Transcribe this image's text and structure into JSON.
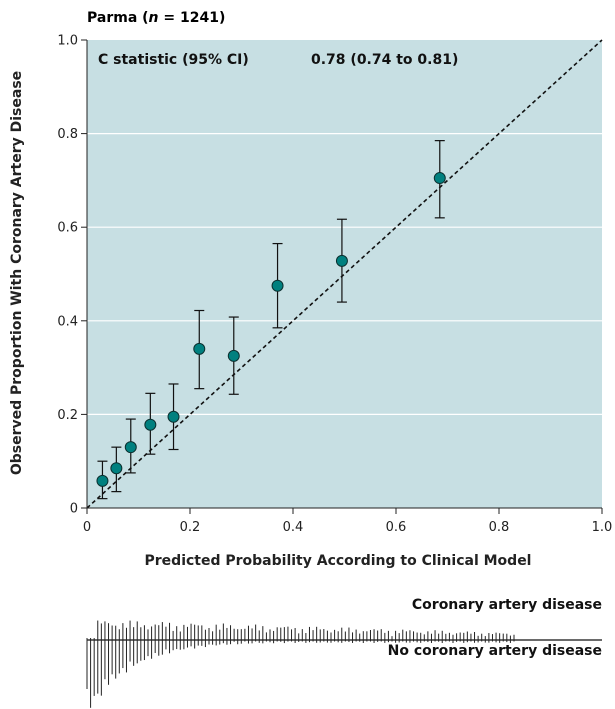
{
  "chart_data": {
    "type": "scatter",
    "title_prefix": "Parma (",
    "title_var": "n",
    "title_suffix": " = 1241)",
    "xlabel": "Predicted Probability According to Clinical Model",
    "ylabel": "Observed Proportion With Coronary Artery Disease",
    "xlim": [
      0,
      1
    ],
    "ylim": [
      0,
      1
    ],
    "x_ticks": [
      "0",
      "0.2",
      "0.4",
      "0.6",
      "0.8",
      "1.0"
    ],
    "y_ticks": [
      "0",
      "0.2",
      "0.4",
      "0.6",
      "0.8",
      "1.0"
    ],
    "grid": "horizontal",
    "reference_line": "identity (dashed)",
    "annotation_label": "C statistic (95% CI)",
    "annotation_value": "0.78 (0.74 to 0.81)",
    "points": [
      {
        "x": 0.03,
        "y": 0.058,
        "lo": 0.02,
        "hi": 0.1
      },
      {
        "x": 0.057,
        "y": 0.085,
        "lo": 0.035,
        "hi": 0.13
      },
      {
        "x": 0.085,
        "y": 0.13,
        "lo": 0.075,
        "hi": 0.19
      },
      {
        "x": 0.123,
        "y": 0.178,
        "lo": 0.115,
        "hi": 0.245
      },
      {
        "x": 0.168,
        "y": 0.195,
        "lo": 0.125,
        "hi": 0.265
      },
      {
        "x": 0.218,
        "y": 0.34,
        "lo": 0.255,
        "hi": 0.422
      },
      {
        "x": 0.285,
        "y": 0.325,
        "lo": 0.243,
        "hi": 0.408
      },
      {
        "x": 0.37,
        "y": 0.475,
        "lo": 0.385,
        "hi": 0.565
      },
      {
        "x": 0.495,
        "y": 0.528,
        "lo": 0.44,
        "hi": 0.617
      },
      {
        "x": 0.685,
        "y": 0.705,
        "lo": 0.62,
        "hi": 0.785
      }
    ],
    "distribution": {
      "upper_label": "Coronary artery disease",
      "lower_label": "No coronary artery disease"
    }
  },
  "colors": {
    "plot_background": "#c7dfe3",
    "point_fill": "#00807f",
    "gridline": "#ffffff",
    "text": "#1a1a1a"
  }
}
